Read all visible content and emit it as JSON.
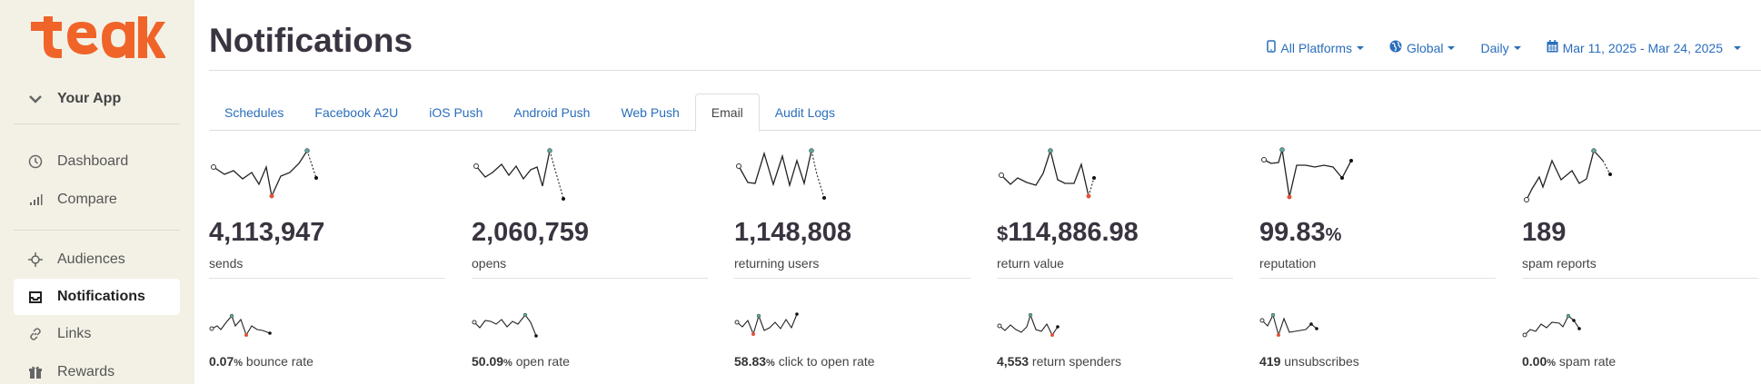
{
  "brand": {
    "logo_text": "teak",
    "color": "#f0642a"
  },
  "sidebar": {
    "app_selector": "Your App",
    "items": [
      {
        "label": "Dashboard",
        "icon": "clock-icon"
      },
      {
        "label": "Compare",
        "icon": "bar-chart-icon"
      },
      {
        "label": "Audiences",
        "icon": "crosshair-icon"
      },
      {
        "label": "Notifications",
        "icon": "inbox-icon",
        "active": true
      },
      {
        "label": "Links",
        "icon": "link-icon"
      },
      {
        "label": "Rewards",
        "icon": "gift-icon"
      }
    ]
  },
  "header": {
    "title": "Notifications",
    "filters": {
      "platforms": "All Platforms",
      "region": "Global",
      "interval": "Daily",
      "date_range": "Mar 11, 2025 - Mar 24, 2025"
    }
  },
  "tabs": [
    "Schedules",
    "Facebook A2U",
    "iOS Push",
    "Android Push",
    "Web Push",
    "Email",
    "Audit Logs"
  ],
  "active_tab": "Email",
  "metrics": [
    {
      "value": "4,113,947",
      "label": "sends"
    },
    {
      "value": "2,060,759",
      "label": "opens"
    },
    {
      "value": "1,148,808",
      "label": "returning users"
    },
    {
      "currency": "$",
      "value": "114,886.98",
      "label": "return value"
    },
    {
      "value": "99.83",
      "unit": "%",
      "label": "reputation"
    },
    {
      "value": "189",
      "label": "spam reports"
    }
  ],
  "submetrics": [
    {
      "value": "0.07",
      "unit": "%",
      "label": " bounce rate"
    },
    {
      "value": "50.09",
      "unit": "%",
      "label": " open rate"
    },
    {
      "value": "58.83",
      "unit": "%",
      "label": " click to open rate"
    },
    {
      "value": "4,553",
      "unit": "",
      "label": " return spenders"
    },
    {
      "value": "419",
      "unit": "",
      "label": " unsubscribes"
    },
    {
      "value": "0.00",
      "unit": "%",
      "label": " spam rate"
    }
  ],
  "colors": {
    "link": "#2a6ebb",
    "sidebar_bg": "#f3f1e6",
    "min_marker": "#e0533a",
    "max_marker": "#5aa69a"
  }
}
